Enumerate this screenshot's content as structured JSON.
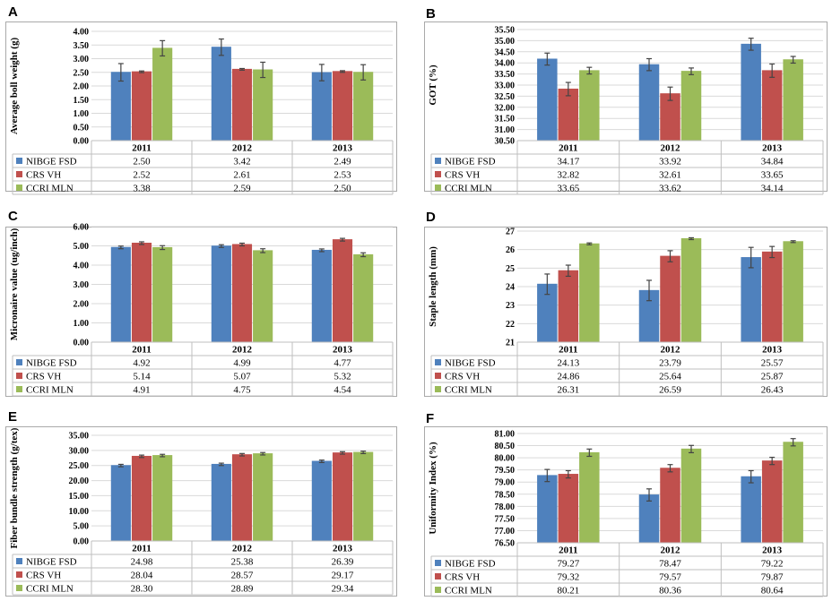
{
  "colors": {
    "series": [
      "#4f81bd",
      "#c0504d",
      "#9bbb59"
    ],
    "grid": "#d9d9d9",
    "border": "#bfbfbf",
    "error": "#444444"
  },
  "chart_data": [
    {
      "panel": "A",
      "type": "bar",
      "title": "",
      "ylabel": "Average boll weight (g)",
      "categories": [
        "2011",
        "2012",
        "2013"
      ],
      "ylim": [
        0,
        4
      ],
      "ytick_step": 0.5,
      "ytick_labels": [
        "0.00",
        "0.50",
        "1.00",
        "1.50",
        "2.00",
        "2.50",
        "3.00",
        "3.50",
        "4.00"
      ],
      "series": [
        {
          "name": "NIBGE FSD",
          "values": [
            2.5,
            3.42,
            2.49
          ],
          "labels": [
            "2.50",
            "3.42",
            "2.49"
          ],
          "errors": [
            0.32,
            0.3,
            0.3
          ]
        },
        {
          "name": "CRS VH",
          "values": [
            2.52,
            2.61,
            2.53
          ],
          "labels": [
            "2.52",
            "2.61",
            "2.53"
          ],
          "errors": [
            0.03,
            0.03,
            0.03
          ]
        },
        {
          "name": "CCRI MLN",
          "values": [
            3.38,
            2.59,
            2.5
          ],
          "labels": [
            "3.38",
            "2.59",
            "2.50"
          ],
          "errors": [
            0.28,
            0.28,
            0.28
          ]
        }
      ]
    },
    {
      "panel": "B",
      "type": "bar",
      "title": "",
      "ylabel": "GOT (%)",
      "categories": [
        "2011",
        "2012",
        "2013"
      ],
      "ylim": [
        30.5,
        35.5
      ],
      "ytick_step": 0.5,
      "ytick_labels": [
        "30.50",
        "31.00",
        "31.50",
        "32.00",
        "32.50",
        "33.00",
        "33.50",
        "34.00",
        "34.50",
        "35.00",
        "35.50"
      ],
      "series": [
        {
          "name": "NIBGE FSD",
          "values": [
            34.17,
            33.92,
            34.84
          ],
          "labels": [
            "34.17",
            "33.92",
            "34.84"
          ],
          "errors": [
            0.27,
            0.27,
            0.27
          ]
        },
        {
          "name": "CRS VH",
          "values": [
            32.82,
            32.61,
            33.65
          ],
          "labels": [
            "32.82",
            "32.61",
            "33.65"
          ],
          "errors": [
            0.3,
            0.3,
            0.3
          ]
        },
        {
          "name": "CCRI MLN",
          "values": [
            33.65,
            33.62,
            34.14
          ],
          "labels": [
            "33.65",
            "33.62",
            "34.14"
          ],
          "errors": [
            0.15,
            0.15,
            0.15
          ]
        }
      ]
    },
    {
      "panel": "C",
      "type": "bar",
      "title": "",
      "ylabel": "Micronaire value (ug/inch)",
      "categories": [
        "2011",
        "2012",
        "2013"
      ],
      "ylim": [
        0,
        6
      ],
      "ytick_step": 1,
      "ytick_labels": [
        "0.00",
        "1.00",
        "2.00",
        "3.00",
        "4.00",
        "5.00",
        "6.00"
      ],
      "series": [
        {
          "name": "NIBGE FSD",
          "values": [
            4.92,
            4.99,
            4.77
          ],
          "labels": [
            "4.92",
            "4.99",
            "4.77"
          ],
          "errors": [
            0.07,
            0.07,
            0.07
          ]
        },
        {
          "name": "CRS VH",
          "values": [
            5.14,
            5.07,
            5.32
          ],
          "labels": [
            "5.14",
            "5.07",
            "5.32"
          ],
          "errors": [
            0.07,
            0.07,
            0.07
          ]
        },
        {
          "name": "CCRI MLN",
          "values": [
            4.91,
            4.75,
            4.54
          ],
          "labels": [
            "4.91",
            "4.75",
            "4.54"
          ],
          "errors": [
            0.1,
            0.1,
            0.1
          ]
        }
      ]
    },
    {
      "panel": "D",
      "type": "bar",
      "title": "",
      "ylabel": "Staple length (mm)",
      "categories": [
        "2011",
        "2012",
        "2013"
      ],
      "ylim": [
        21,
        27
      ],
      "ytick_step": 1,
      "ytick_labels": [
        "21",
        "22",
        "23",
        "24",
        "25",
        "26",
        "27"
      ],
      "series": [
        {
          "name": "NIBGE FSD",
          "values": [
            24.13,
            23.79,
            25.57
          ],
          "labels": [
            "24.13",
            "23.79",
            "25.57"
          ],
          "errors": [
            0.55,
            0.55,
            0.55
          ]
        },
        {
          "name": "CRS VH",
          "values": [
            24.86,
            25.64,
            25.87
          ],
          "labels": [
            "24.86",
            "25.64",
            "25.87"
          ],
          "errors": [
            0.3,
            0.3,
            0.3
          ]
        },
        {
          "name": "CCRI MLN",
          "values": [
            26.31,
            26.59,
            26.43
          ],
          "labels": [
            "26.31",
            "26.59",
            "26.43"
          ],
          "errors": [
            0.05,
            0.05,
            0.05
          ]
        }
      ]
    },
    {
      "panel": "E",
      "type": "bar",
      "title": "",
      "ylabel": "Fiber bundle strength (g/tex)",
      "categories": [
        "2011",
        "2012",
        "2013"
      ],
      "ylim": [
        0,
        35
      ],
      "ytick_step": 5,
      "ytick_labels": [
        "0.00",
        "5.00",
        "10.00",
        "15.00",
        "20.00",
        "25.00",
        "30.00",
        "35.00"
      ],
      "series": [
        {
          "name": "NIBGE FSD",
          "values": [
            24.98,
            25.38,
            26.39
          ],
          "labels": [
            "24.98",
            "25.38",
            "26.39"
          ],
          "errors": [
            0.4,
            0.4,
            0.4
          ]
        },
        {
          "name": "CRS VH",
          "values": [
            28.04,
            28.57,
            29.17
          ],
          "labels": [
            "28.04",
            "28.57",
            "29.17"
          ],
          "errors": [
            0.4,
            0.4,
            0.4
          ]
        },
        {
          "name": "CCRI MLN",
          "values": [
            28.3,
            28.89,
            29.34
          ],
          "labels": [
            "28.30",
            "28.89",
            "29.34"
          ],
          "errors": [
            0.4,
            0.4,
            0.4
          ]
        }
      ]
    },
    {
      "panel": "F",
      "type": "bar",
      "title": "",
      "ylabel": "Uniformity Index (%)",
      "categories": [
        "2011",
        "2012",
        "2013"
      ],
      "ylim": [
        76.5,
        81
      ],
      "ytick_step": 0.5,
      "ytick_labels": [
        "76.50",
        "77.00",
        "77.50",
        "78.00",
        "78.50",
        "79.00",
        "79.50",
        "80.00",
        "80.50",
        "81.00"
      ],
      "series": [
        {
          "name": "NIBGE FSD",
          "values": [
            79.27,
            78.47,
            79.22
          ],
          "labels": [
            "79.27",
            "78.47",
            "79.22"
          ],
          "errors": [
            0.25,
            0.25,
            0.25
          ]
        },
        {
          "name": "CRS VH",
          "values": [
            79.32,
            79.57,
            79.87
          ],
          "labels": [
            "79.32",
            "79.57",
            "79.87"
          ],
          "errors": [
            0.15,
            0.15,
            0.15
          ]
        },
        {
          "name": "CCRI MLN",
          "values": [
            80.21,
            80.36,
            80.64
          ],
          "labels": [
            "80.21",
            "80.36",
            "80.64"
          ],
          "errors": [
            0.15,
            0.15,
            0.15
          ]
        }
      ]
    }
  ]
}
